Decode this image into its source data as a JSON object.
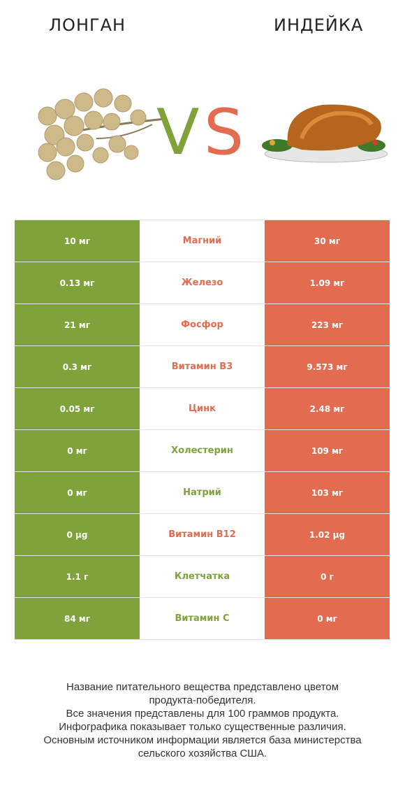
{
  "header": {
    "left_title": "ЛОНГАН",
    "right_title": "ИНДЕЙКА",
    "vs_v": "V",
    "vs_s": "S"
  },
  "colors": {
    "left": "#7fa33a",
    "right": "#e36b4f"
  },
  "rows": [
    {
      "left": "10 мг",
      "name": "Магний",
      "right": "30 мг",
      "winner": "right"
    },
    {
      "left": "0.13 мг",
      "name": "Железо",
      "right": "1.09 мг",
      "winner": "right"
    },
    {
      "left": "21 мг",
      "name": "Фосфор",
      "right": "223 мг",
      "winner": "right"
    },
    {
      "left": "0.3 мг",
      "name": "Витамин B3",
      "right": "9.573 мг",
      "winner": "right"
    },
    {
      "left": "0.05 мг",
      "name": "Цинк",
      "right": "2.48 мг",
      "winner": "right"
    },
    {
      "left": "0 мг",
      "name": "Холестерин",
      "right": "109 мг",
      "winner": "left"
    },
    {
      "left": "0 мг",
      "name": "Натрий",
      "right": "103 мг",
      "winner": "left"
    },
    {
      "left": "0 µg",
      "name": "Витамин B12",
      "right": "1.02 µg",
      "winner": "right"
    },
    {
      "left": "1.1 г",
      "name": "Клетчатка",
      "right": "0 г",
      "winner": "left"
    },
    {
      "left": "84 мг",
      "name": "Витамин C",
      "right": "0 мг",
      "winner": "left"
    }
  ],
  "footer": {
    "line1": "Название питательного вещества представлено цветом",
    "line2": "продукта-победителя.",
    "line3": "Все значения представлены для 100 граммов продукта.",
    "line4": "Инфографика показывает только существенные различия.",
    "line5": "Основным источником информации является база министерства",
    "line6": "сельского хозяйства США."
  }
}
